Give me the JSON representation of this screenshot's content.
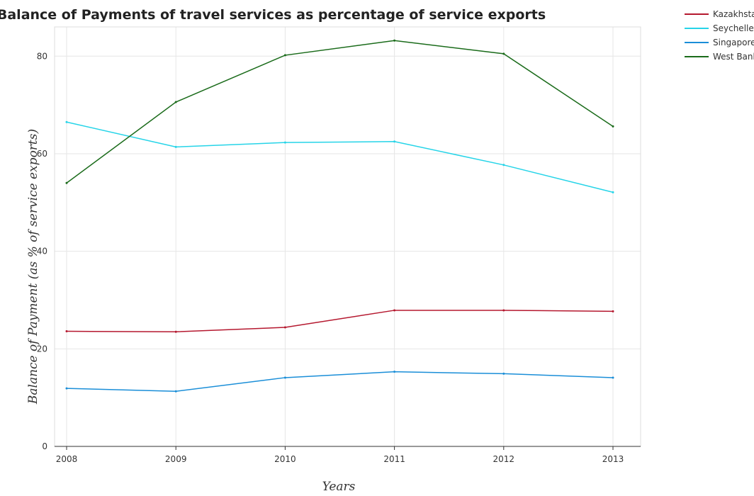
{
  "chart_data": {
    "type": "line",
    "title": "Balance of Payments of travel services as percentage of service exports",
    "xlabel": "Years",
    "ylabel": "Balance of Payment (as % of service exports)",
    "categories": [
      "2008",
      "2009",
      "2010",
      "2011",
      "2012",
      "2013"
    ],
    "ylim": [
      0,
      86
    ],
    "yticks": [
      0,
      20,
      40,
      60,
      80
    ],
    "grid": true,
    "legend_position": "top-right",
    "series": [
      {
        "name": "Kazakhstan",
        "color": "#b5182f",
        "values": [
          23.6,
          23.5,
          24.4,
          27.9,
          27.9,
          27.7
        ]
      },
      {
        "name": "Seychelles",
        "color": "#26d4e8",
        "values": [
          66.5,
          61.4,
          62.3,
          62.5,
          57.7,
          52.1
        ]
      },
      {
        "name": "Singapore",
        "color": "#1a8ed8",
        "values": [
          11.9,
          11.3,
          14.1,
          15.3,
          14.9,
          14.1
        ]
      },
      {
        "name": "West Bank and Gaza",
        "color": "#1a6b1a",
        "values": [
          54.0,
          70.6,
          80.2,
          83.2,
          80.5,
          65.6
        ]
      }
    ]
  }
}
